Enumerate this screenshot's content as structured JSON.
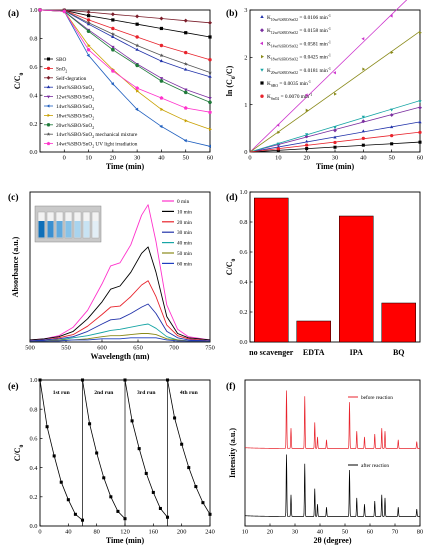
{
  "chart_data": [
    {
      "panel": "(a)",
      "type": "line",
      "xlabel": "Time (min)",
      "ylabel": "C/C0",
      "xlim": [
        -10,
        60
      ],
      "ylim": [
        0,
        1.0
      ],
      "xticks": [
        "0",
        "10",
        "20",
        "30",
        "40",
        "50",
        "60"
      ],
      "yticks": [
        "0.0",
        "0.2",
        "0.4",
        "0.6",
        "0.8",
        "1.0"
      ],
      "x": [
        -10,
        0,
        10,
        20,
        30,
        40,
        50,
        60
      ],
      "series": [
        {
          "name": "SBO",
          "color": "#000000",
          "marker": "square",
          "values": [
            1.0,
            0.998,
            0.96,
            0.93,
            0.9,
            0.87,
            0.84,
            0.81
          ]
        },
        {
          "name": "SnO2",
          "color": "#e8232c",
          "marker": "circle",
          "values": [
            1.0,
            0.998,
            0.93,
            0.87,
            0.81,
            0.75,
            0.7,
            0.65
          ]
        },
        {
          "name": "Self-degration",
          "color": "#7a1d2a",
          "marker": "diamond",
          "values": [
            1.0,
            0.999,
            0.985,
            0.97,
            0.955,
            0.94,
            0.925,
            0.91
          ]
        },
        {
          "name": "10wt%SBO/SnO2",
          "color": "#2233aa",
          "marker": "triangle-up",
          "values": [
            1.0,
            0.995,
            0.9,
            0.81,
            0.72,
            0.64,
            0.58,
            0.53
          ]
        },
        {
          "name": "12wt%SBO/SnO2",
          "color": "#7b2fa0",
          "marker": "triangle-down",
          "values": [
            1.0,
            0.99,
            0.86,
            0.74,
            0.62,
            0.52,
            0.44,
            0.38
          ]
        },
        {
          "name": "14wt%SBO/SnO2",
          "color": "#1f5fbf",
          "marker": "triangle-left",
          "values": [
            1.0,
            0.99,
            0.68,
            0.48,
            0.3,
            0.18,
            0.08,
            0.04
          ]
        },
        {
          "name": "18wt%SBO/SnO2",
          "color": "#c8a000",
          "marker": "triangle-right",
          "values": [
            1.0,
            0.99,
            0.75,
            0.58,
            0.43,
            0.3,
            0.22,
            0.16
          ]
        },
        {
          "name": "20wt%SBO/SnO2",
          "color": "#1f7a3a",
          "marker": "hexagon",
          "values": [
            1.0,
            0.99,
            0.85,
            0.72,
            0.61,
            0.5,
            0.42,
            0.35
          ]
        },
        {
          "name": "14wt%SBO/SnO2 mechanical mixture",
          "color": "#555555",
          "marker": "star",
          "values": [
            1.0,
            0.997,
            0.91,
            0.83,
            0.75,
            0.68,
            0.62,
            0.56
          ]
        },
        {
          "name": "14wt%SBO/SnO2 UV light irradiation",
          "color": "#ff33cc",
          "marker": "pentagon",
          "values": [
            1.0,
            0.99,
            0.72,
            0.57,
            0.45,
            0.38,
            0.31,
            0.28
          ]
        }
      ]
    },
    {
      "panel": "(b)",
      "type": "scatter",
      "xlabel": "Time (min)",
      "ylabel": "ln (C0/C)",
      "xlim": [
        0,
        60
      ],
      "ylim": [
        0,
        3
      ],
      "xticks": [
        "0",
        "10",
        "20",
        "30",
        "40",
        "50",
        "60"
      ],
      "yticks": [
        "0",
        "1",
        "2",
        "3"
      ],
      "x": [
        0,
        10,
        20,
        30,
        40,
        50,
        60
      ],
      "series": [
        {
          "label": "K10wt%SBO/SnO2 = 0.0106 min-1",
          "color": "#2233aa",
          "marker": "triangle-up",
          "k": 0.0106
        },
        {
          "label": "K12wt%SBO/SnO2 = 0.0158 min-1",
          "color": "#7b2fa0",
          "marker": "diamond",
          "k": 0.0158
        },
        {
          "label": "K14wt%SBO/SnO2 = 0.0581 min-1",
          "color": "#cc33cc",
          "marker": "triangle-left",
          "k": 0.0581
        },
        {
          "label": "K18wt%SBO/SnO2 = 0.0425 min-1",
          "color": "#8a8a1a",
          "marker": "triangle-right",
          "k": 0.0425
        },
        {
          "label": "K20wt%SBO/SnO2 = 0.0181 min-1",
          "color": "#17a5a5",
          "marker": "triangle-down",
          "k": 0.0181
        },
        {
          "label": "KSBO = 0.0035 min-1",
          "color": "#000000",
          "marker": "square",
          "k": 0.0035
        },
        {
          "label": "KSnO2 = 0.0070 min-1",
          "color": "#e8232c",
          "marker": "circle",
          "k": 0.007
        }
      ]
    },
    {
      "panel": "(c)",
      "type": "line",
      "xlabel": "Wavelength (nm)",
      "ylabel": "Absorbance (a.u.)",
      "xlim": [
        500,
        750
      ],
      "xticks": [
        "500",
        "550",
        "600",
        "650",
        "700",
        "750"
      ],
      "x": [
        500,
        520,
        540,
        560,
        580,
        600,
        612,
        625,
        640,
        655,
        664,
        675,
        690,
        705,
        720,
        750
      ],
      "series": [
        {
          "name": "0  min",
          "color": "#ff33cc",
          "values": [
            0.02,
            0.03,
            0.06,
            0.14,
            0.3,
            0.55,
            0.72,
            0.75,
            0.92,
            1.2,
            1.3,
            0.95,
            0.35,
            0.12,
            0.05,
            0.02
          ]
        },
        {
          "name": "10 min",
          "color": "#000000",
          "values": [
            0.02,
            0.03,
            0.05,
            0.1,
            0.22,
            0.38,
            0.5,
            0.53,
            0.66,
            0.84,
            0.9,
            0.66,
            0.24,
            0.08,
            0.04,
            0.02
          ]
        },
        {
          "name": "20 min",
          "color": "#e8232c",
          "values": [
            0.01,
            0.02,
            0.04,
            0.07,
            0.15,
            0.26,
            0.33,
            0.34,
            0.43,
            0.54,
            0.58,
            0.43,
            0.16,
            0.06,
            0.03,
            0.01
          ]
        },
        {
          "name": "30 min",
          "color": "#2233aa",
          "values": [
            0.01,
            0.02,
            0.03,
            0.05,
            0.1,
            0.17,
            0.21,
            0.22,
            0.27,
            0.33,
            0.36,
            0.27,
            0.1,
            0.04,
            0.02,
            0.01
          ]
        },
        {
          "name": "40 min",
          "color": "#17a5a5",
          "values": [
            0.01,
            0.01,
            0.02,
            0.04,
            0.06,
            0.09,
            0.11,
            0.12,
            0.14,
            0.16,
            0.17,
            0.13,
            0.05,
            0.02,
            0.01,
            0.01
          ]
        },
        {
          "name": "50 min",
          "color": "#8a8a1a",
          "values": [
            0.01,
            0.01,
            0.02,
            0.02,
            0.03,
            0.05,
            0.06,
            0.06,
            0.07,
            0.08,
            0.08,
            0.07,
            0.03,
            0.02,
            0.01,
            0.01
          ]
        },
        {
          "name": "60 min",
          "color": "#1f3fbf",
          "values": [
            0.01,
            0.01,
            0.01,
            0.02,
            0.02,
            0.03,
            0.03,
            0.03,
            0.04,
            0.04,
            0.04,
            0.04,
            0.02,
            0.01,
            0.01,
            0.01
          ]
        }
      ]
    },
    {
      "panel": "(d)",
      "type": "bar",
      "ylabel": "C/C0",
      "ylim": [
        0,
        1.0
      ],
      "yticks": [
        "0.0",
        "0.2",
        "0.4",
        "0.6",
        "0.8",
        "1.0"
      ],
      "categories": [
        "no scavenger",
        "EDTA",
        "IPA",
        "BQ"
      ],
      "values": [
        0.96,
        0.14,
        0.84,
        0.26
      ],
      "bar_color": "#ff0000"
    },
    {
      "panel": "(e)",
      "type": "line",
      "xlabel": "Time (min)",
      "ylabel": "C/C0",
      "xlim": [
        0,
        240
      ],
      "ylim": [
        0,
        1.0
      ],
      "xticks": [
        "0",
        "40",
        "80",
        "120",
        "160",
        "200",
        "240"
      ],
      "yticks": [
        "0.0",
        "0.2",
        "0.4",
        "0.6",
        "0.8",
        "1.0"
      ],
      "runs": [
        "1st run",
        "2nd run",
        "3rd run",
        "4th run"
      ],
      "series": [
        {
          "name": "1st run",
          "x": [
            0,
            10,
            20,
            30,
            40,
            50,
            60
          ],
          "values": [
            1.0,
            0.68,
            0.48,
            0.3,
            0.18,
            0.08,
            0.04
          ]
        },
        {
          "name": "2nd run",
          "x": [
            60,
            70,
            80,
            90,
            100,
            110,
            120
          ],
          "values": [
            1.0,
            0.7,
            0.5,
            0.33,
            0.2,
            0.1,
            0.05
          ]
        },
        {
          "name": "3rd run",
          "x": [
            120,
            130,
            140,
            150,
            160,
            170,
            180
          ],
          "values": [
            1.0,
            0.72,
            0.53,
            0.36,
            0.23,
            0.12,
            0.06
          ]
        },
        {
          "name": "4th run",
          "x": [
            180,
            190,
            200,
            210,
            220,
            230,
            240
          ],
          "values": [
            1.0,
            0.74,
            0.56,
            0.4,
            0.27,
            0.16,
            0.08
          ]
        }
      ]
    },
    {
      "panel": "(f)",
      "type": "line",
      "xlabel": "2θ (degree)",
      "ylabel": "Intensity (a.u.)",
      "xlim": [
        10,
        80
      ],
      "xticks": [
        "10",
        "20",
        "30",
        "40",
        "50",
        "60",
        "70",
        "80"
      ],
      "series": [
        {
          "name": "before reaction",
          "color": "#e8232c",
          "peaks": [
            [
              26.6,
              1.0
            ],
            [
              28.4,
              0.35
            ],
            [
              33.9,
              0.9
            ],
            [
              37.9,
              0.45
            ],
            [
              39.0,
              0.2
            ],
            [
              42.6,
              0.15
            ],
            [
              51.8,
              0.8
            ],
            [
              54.7,
              0.3
            ],
            [
              57.8,
              0.2
            ],
            [
              61.9,
              0.25
            ],
            [
              64.7,
              0.35
            ],
            [
              66.0,
              0.3
            ],
            [
              71.3,
              0.15
            ],
            [
              78.7,
              0.12
            ]
          ]
        },
        {
          "name": "after reaction",
          "color": "#000000",
          "peaks": [
            [
              26.6,
              1.0
            ],
            [
              28.4,
              0.35
            ],
            [
              33.9,
              0.85
            ],
            [
              37.9,
              0.45
            ],
            [
              39.0,
              0.2
            ],
            [
              42.6,
              0.15
            ],
            [
              51.8,
              0.75
            ],
            [
              54.7,
              0.3
            ],
            [
              57.8,
              0.2
            ],
            [
              61.9,
              0.25
            ],
            [
              64.7,
              0.35
            ],
            [
              66.0,
              0.3
            ],
            [
              71.3,
              0.15
            ],
            [
              78.7,
              0.12
            ]
          ]
        }
      ]
    }
  ]
}
